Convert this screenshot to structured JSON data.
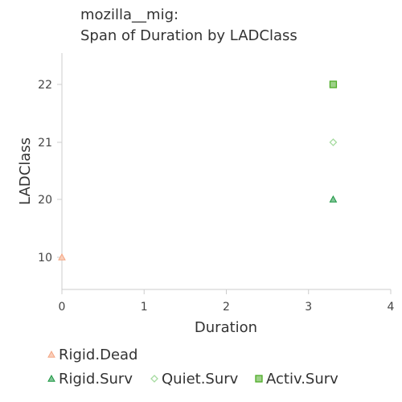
{
  "chart_data": {
    "type": "scatter",
    "title_line1": "mozilla__mig:",
    "title_line2": "Span of Duration by LADClass",
    "xlabel": "Duration",
    "ylabel": "LADClass",
    "x_ticks": [
      "0",
      "1",
      "2",
      "3",
      "4"
    ],
    "y_ticks": [
      "10",
      "20",
      "21",
      "22"
    ],
    "xlim": [
      0,
      4
    ],
    "y_categories": [
      "10",
      "20",
      "21",
      "22"
    ],
    "grid": false,
    "legend_position": "bottom",
    "series": [
      {
        "name": "Rigid.Dead",
        "marker": "triangle",
        "color": "#f4a582",
        "points": [
          {
            "x": 0.0,
            "y": "10"
          }
        ]
      },
      {
        "name": "Rigid.Surv",
        "marker": "triangle",
        "color": "#1a9641",
        "points": [
          {
            "x": 3.3,
            "y": "20"
          }
        ]
      },
      {
        "name": "Quiet.Surv",
        "marker": "diamond",
        "color": "#a6dba0",
        "points": [
          {
            "x": 3.3,
            "y": "21"
          }
        ]
      },
      {
        "name": "Activ.Surv",
        "marker": "square",
        "color": "#4dac26",
        "points": [
          {
            "x": 3.3,
            "y": "22"
          }
        ]
      }
    ]
  }
}
